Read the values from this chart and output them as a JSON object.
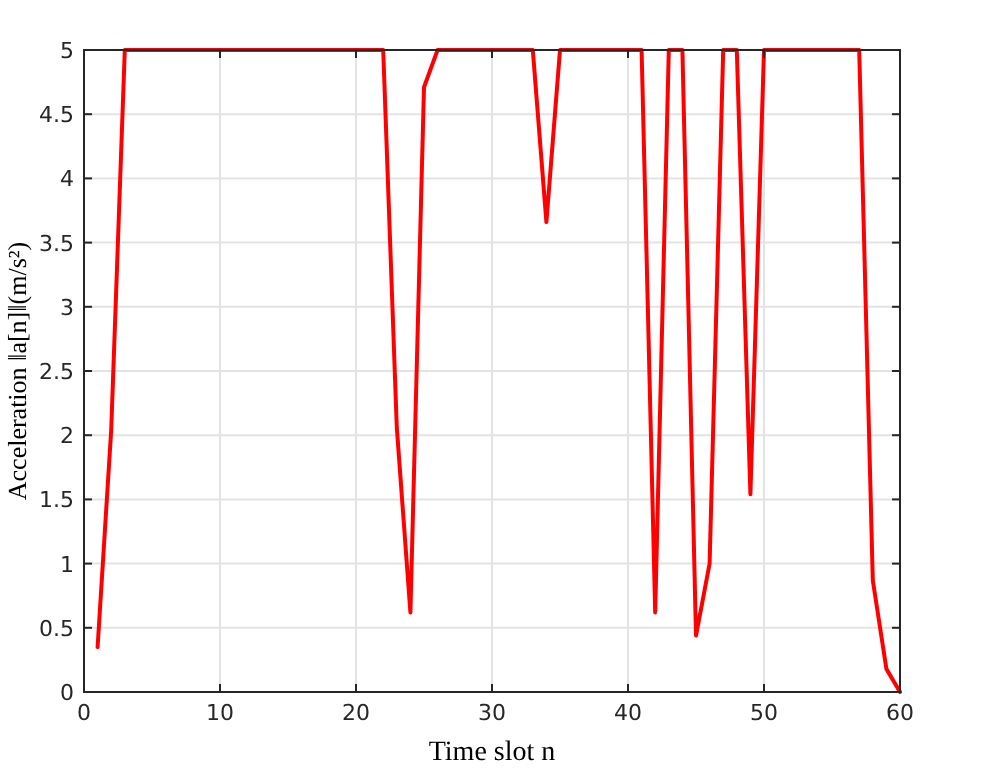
{
  "chart_data": {
    "type": "line",
    "xlabel": "Time slot n",
    "ylabel": "Acceleration ‖a[n]‖(m/s²)",
    "x": [
      1,
      2,
      3,
      4,
      5,
      6,
      7,
      8,
      9,
      10,
      11,
      12,
      13,
      14,
      15,
      16,
      17,
      18,
      19,
      20,
      21,
      22,
      23,
      24,
      25,
      26,
      27,
      28,
      29,
      30,
      31,
      32,
      33,
      34,
      35,
      36,
      37,
      38,
      39,
      40,
      41,
      42,
      43,
      44,
      45,
      46,
      47,
      48,
      49,
      50,
      51,
      52,
      53,
      54,
      55,
      56,
      57,
      58,
      59,
      60
    ],
    "series": [
      {
        "color": "#ff0000",
        "values": [
          0.35,
          2.04,
          5,
          5,
          5,
          5,
          5,
          5,
          5,
          5,
          5,
          5,
          5,
          5,
          5,
          5,
          5,
          5,
          5,
          5,
          5,
          5,
          2.06,
          0.62,
          4.71,
          5,
          5,
          5,
          5,
          5,
          5,
          5,
          5,
          3.66,
          5,
          5,
          5,
          5,
          5,
          5,
          5,
          0.62,
          5,
          5,
          0.44,
          1.0,
          5,
          5,
          1.54,
          5,
          5,
          5,
          5,
          5,
          5,
          5,
          5,
          0.87,
          0.18,
          0
        ]
      }
    ],
    "xlim": [
      0,
      60
    ],
    "xticks": [
      0,
      10,
      20,
      30,
      40,
      50,
      60
    ],
    "ylim": [
      0,
      5
    ],
    "yticks": [
      0,
      0.5,
      1,
      1.5,
      2,
      2.5,
      3,
      3.5,
      4,
      4.5,
      5
    ],
    "grid": true,
    "marker": "none",
    "line_style": "solid"
  }
}
